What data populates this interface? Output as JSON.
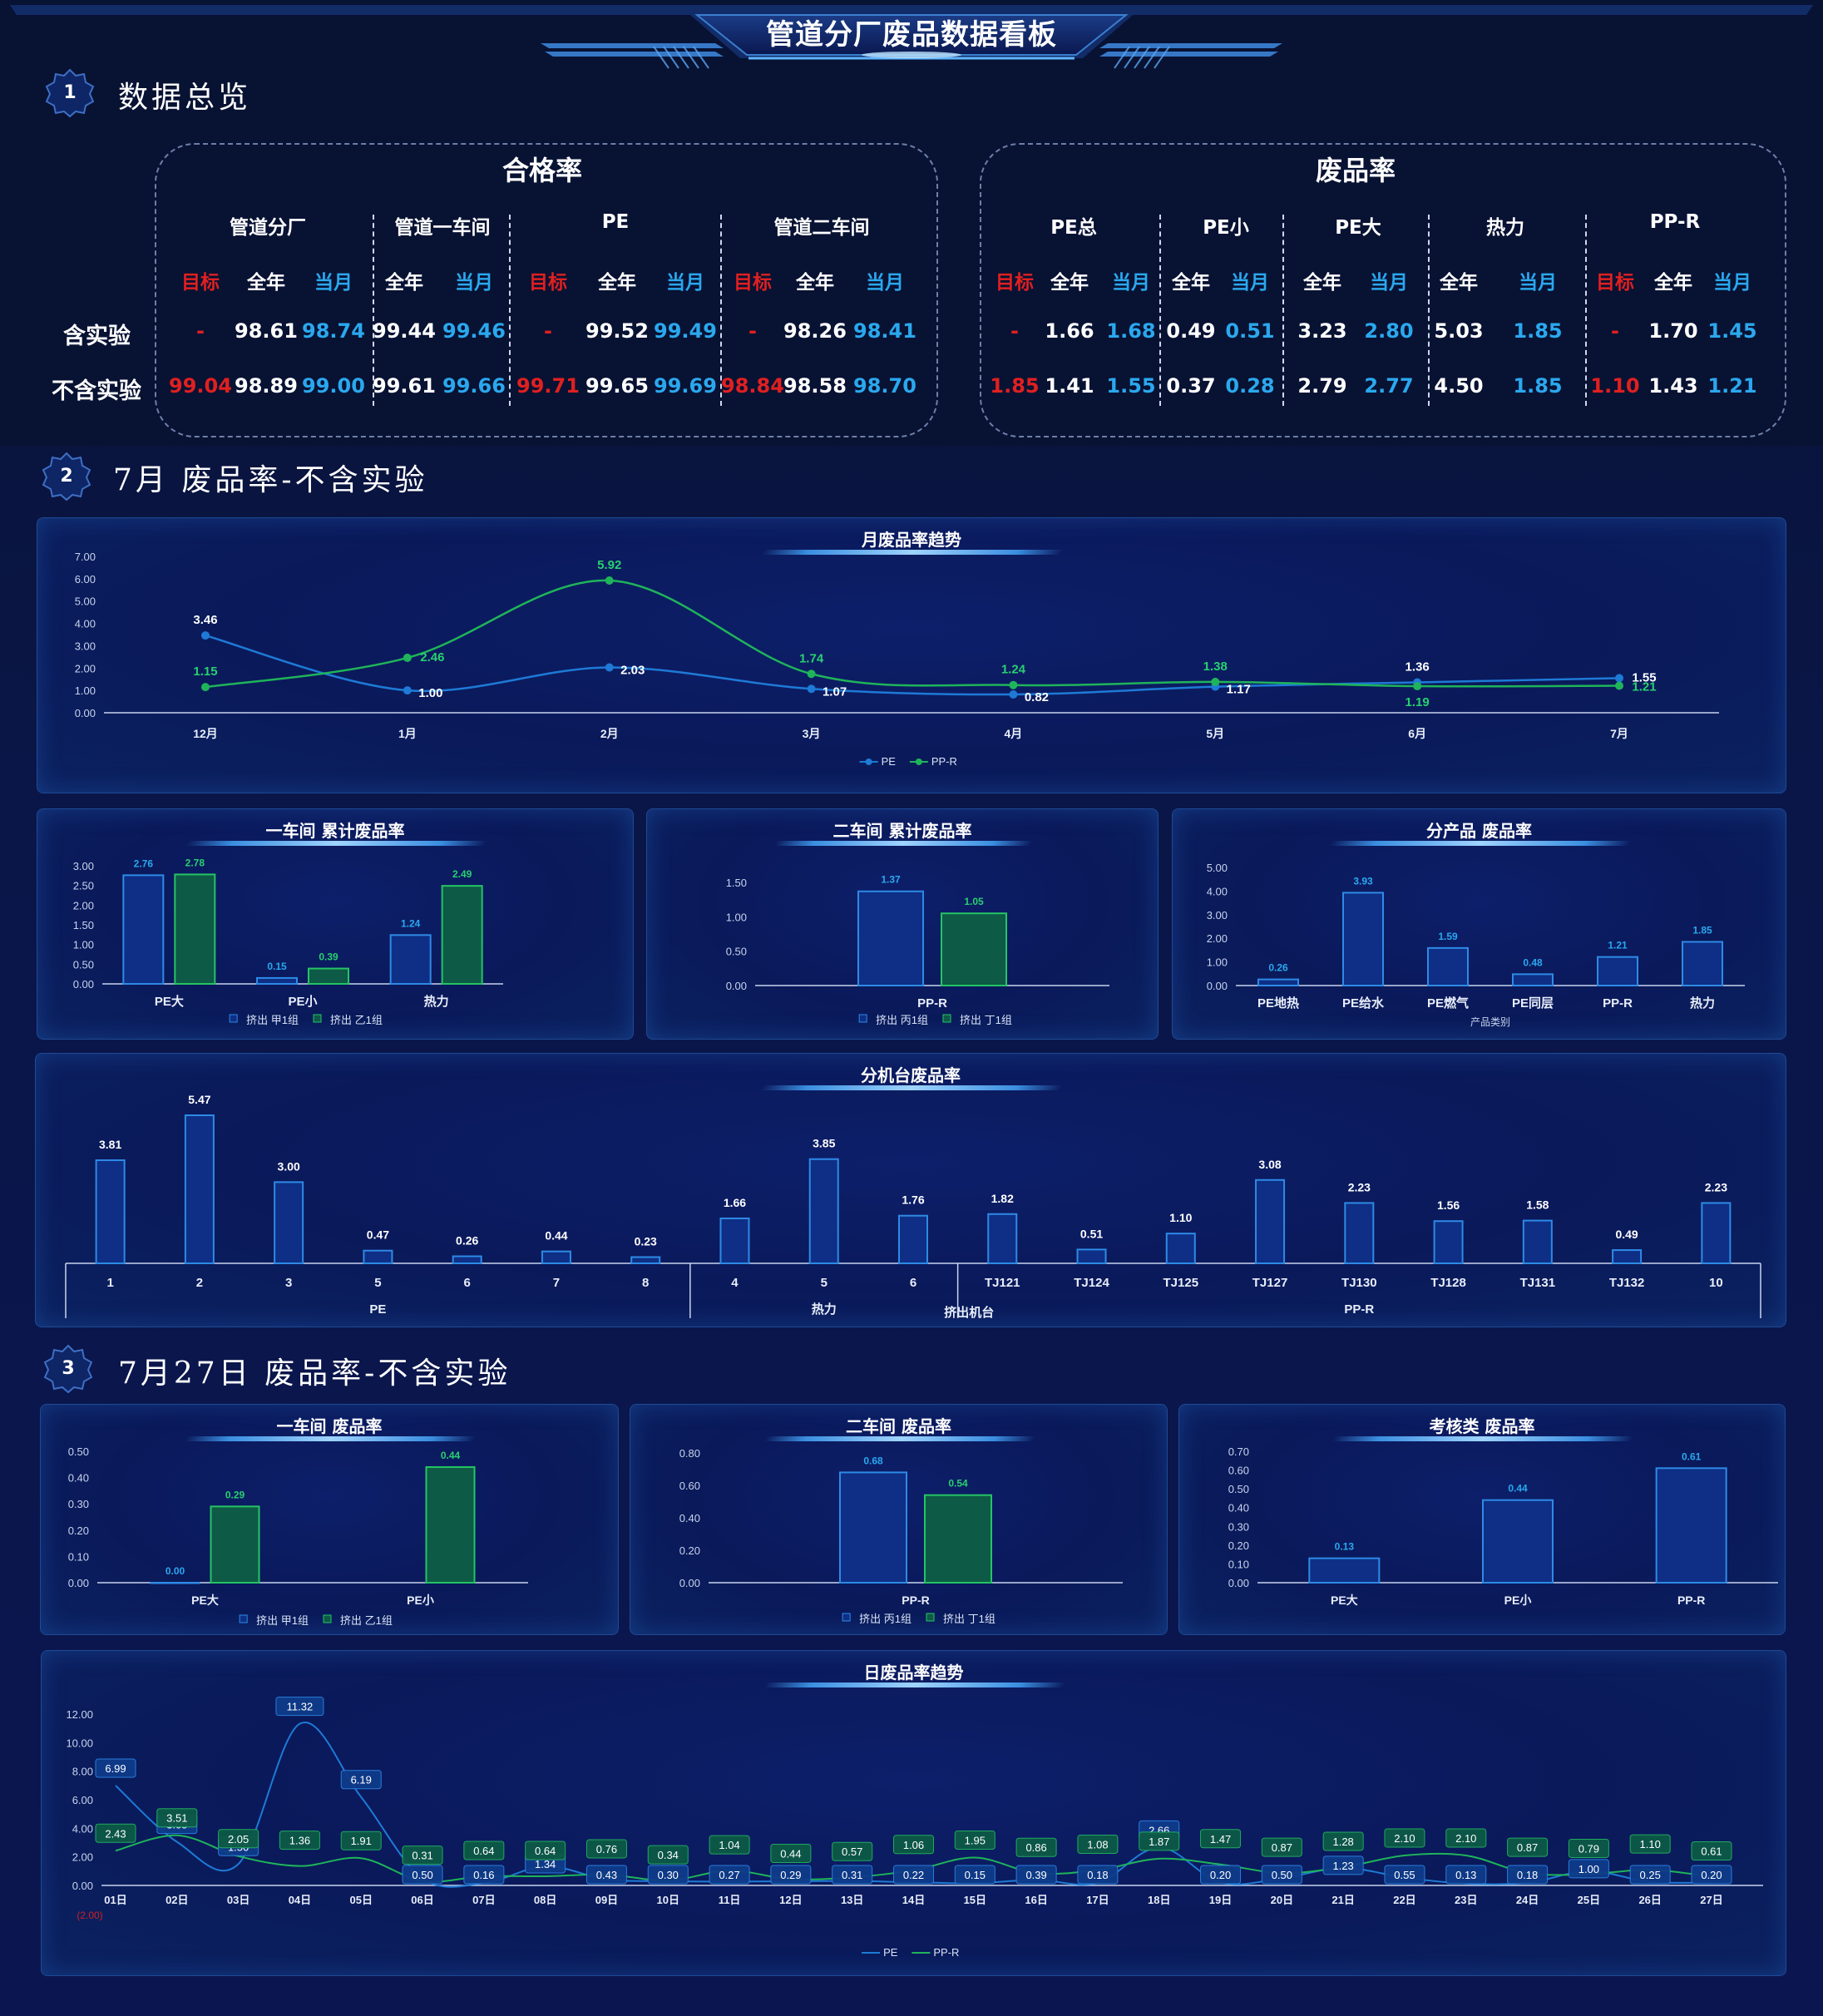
{
  "page_title": "管道分厂废品数据看板",
  "sections": [
    {
      "num": "1",
      "title": "数据总览"
    },
    {
      "num": "2",
      "title": "7月 废品率-不含实验"
    },
    {
      "num": "3",
      "title": "7月27日 废品率-不含实验"
    }
  ],
  "overview": {
    "row_labels": [
      "含实验",
      "不含实验"
    ],
    "sub_labels": {
      "target": "目标",
      "year": "全年",
      "month": "当月"
    },
    "pass_rate": {
      "title": "合格率",
      "groups": [
        {
          "name": "管道分厂",
          "cols": [
            "target",
            "year",
            "month"
          ],
          "rows": [
            [
              "-",
              "98.61",
              "98.74"
            ],
            [
              "99.04",
              "98.89",
              "99.00"
            ]
          ]
        },
        {
          "name": "管道一车间",
          "cols": [
            "year",
            "month"
          ],
          "rows": [
            [
              "99.44",
              "99.46"
            ],
            [
              "99.61",
              "99.66"
            ]
          ]
        },
        {
          "name": "PE",
          "cols": [
            "target",
            "year",
            "month"
          ],
          "rows": [
            [
              "-",
              "99.52",
              "99.49"
            ],
            [
              "99.71",
              "99.65",
              "99.69"
            ]
          ]
        },
        {
          "name": "管道二车间",
          "cols": [
            "target",
            "year",
            "month"
          ],
          "rows": [
            [
              "-",
              "98.26",
              "98.41"
            ],
            [
              "98.84",
              "98.58",
              "98.70"
            ]
          ]
        }
      ]
    },
    "scrap_rate": {
      "title": "废品率",
      "groups": [
        {
          "name": "PE总",
          "cols": [
            "target",
            "year",
            "month"
          ],
          "rows": [
            [
              "-",
              "1.66",
              "1.68"
            ],
            [
              "1.85",
              "1.41",
              "1.55"
            ]
          ]
        },
        {
          "name": "PE小",
          "cols": [
            "year",
            "month"
          ],
          "rows": [
            [
              "0.49",
              "0.51"
            ],
            [
              "0.37",
              "0.28"
            ]
          ]
        },
        {
          "name": "PE大",
          "cols": [
            "year",
            "month"
          ],
          "rows": [
            [
              "3.23",
              "2.80"
            ],
            [
              "2.79",
              "2.77"
            ]
          ]
        },
        {
          "name": "热力",
          "cols": [
            "year",
            "month"
          ],
          "rows": [
            [
              "5.03",
              "1.85"
            ],
            [
              "4.50",
              "1.85"
            ]
          ]
        },
        {
          "name": "PP-R",
          "cols": [
            "target",
            "year",
            "month"
          ],
          "rows": [
            [
              "-",
              "1.70",
              "1.45"
            ],
            [
              "1.10",
              "1.43",
              "1.21"
            ]
          ]
        }
      ]
    }
  },
  "chart_data": [
    {
      "id": "monthly-trend",
      "type": "line",
      "title": "月废品率趋势",
      "categories": [
        "12月",
        "1月",
        "2月",
        "3月",
        "4月",
        "5月",
        "6月",
        "7月"
      ],
      "y_ticks": [
        "0.00",
        "1.00",
        "2.00",
        "3.00",
        "4.00",
        "5.00",
        "6.00",
        "7.00"
      ],
      "ylim": [
        0,
        7
      ],
      "series": [
        {
          "name": "PE",
          "values": [
            3.46,
            1.0,
            2.03,
            1.07,
            0.82,
            1.17,
            1.36,
            1.55
          ],
          "labels": [
            "3.46",
            "1.00",
            "2.03",
            "1.07",
            "0.82",
            "1.17",
            "1.36",
            "1.55"
          ]
        },
        {
          "name": "PP-R",
          "values": [
            1.15,
            2.46,
            5.92,
            1.74,
            1.24,
            1.38,
            1.19,
            1.21
          ],
          "labels": [
            "1.15",
            "2.46",
            "5.92",
            "1.74",
            "1.24",
            "1.38",
            "1.19",
            "1.21"
          ]
        }
      ],
      "legend": "bottom-center"
    },
    {
      "id": "ws1-cumulative",
      "type": "bar",
      "title": "一车间 累计废品率",
      "categories": [
        "PE大",
        "PE小",
        "热力"
      ],
      "y_ticks": [
        "0.00",
        "0.50",
        "1.00",
        "1.50",
        "2.00",
        "2.50",
        "3.00"
      ],
      "ylim": [
        0,
        3
      ],
      "series": [
        {
          "name": "挤出 甲1组",
          "values": [
            2.76,
            0.15,
            1.24
          ],
          "labels": [
            "2.76",
            "0.15",
            "1.24"
          ]
        },
        {
          "name": "挤出 乙1组",
          "values": [
            2.78,
            0.39,
            2.49
          ],
          "labels": [
            "2.78",
            "0.39",
            "2.49"
          ]
        }
      ],
      "legend": "bottom-center"
    },
    {
      "id": "ws2-cumulative",
      "type": "bar",
      "title": "二车间 累计废品率",
      "categories": [
        "PP-R"
      ],
      "y_ticks": [
        "0.00",
        "0.50",
        "1.00",
        "1.50"
      ],
      "ylim": [
        0,
        1.5
      ],
      "series": [
        {
          "name": "挤出 丙1组",
          "values": [
            1.37
          ],
          "labels": [
            "1.37"
          ]
        },
        {
          "name": "挤出 丁1组",
          "values": [
            1.05
          ],
          "labels": [
            "1.05"
          ]
        }
      ],
      "legend": "bottom-center"
    },
    {
      "id": "product-scrap",
      "type": "bar",
      "title": "分产品 废品率",
      "categories": [
        "PE地热",
        "PE给水",
        "PE燃气",
        "PE同层",
        "PP-R",
        "热力"
      ],
      "xlabel": "产品类别",
      "y_ticks": [
        "0.00",
        "1.00",
        "2.00",
        "3.00",
        "4.00",
        "5.00"
      ],
      "ylim": [
        0,
        5
      ],
      "series": [
        {
          "values": [
            0.26,
            3.93,
            1.59,
            0.48,
            1.21,
            1.85
          ],
          "labels": [
            "0.26",
            "3.93",
            "1.59",
            "0.48",
            "1.21",
            "1.85"
          ]
        }
      ]
    },
    {
      "id": "machine-scrap",
      "type": "bar",
      "title": "分机台废品率",
      "categories": [
        "1",
        "2",
        "3",
        "5",
        "6",
        "7",
        "8",
        "4",
        "5",
        "6",
        "TJ121",
        "TJ124",
        "TJ125",
        "TJ127",
        "TJ130",
        "TJ128",
        "TJ131",
        "TJ132",
        "10"
      ],
      "groups": [
        {
          "name": "PE",
          "count": 7
        },
        {
          "name": "热力",
          "count": 3
        },
        {
          "name": "PP-R",
          "count": 9
        }
      ],
      "xlabel": "挤出机台",
      "series": [
        {
          "values": [
            3.81,
            5.47,
            3.0,
            0.47,
            0.26,
            0.44,
            0.23,
            1.66,
            3.85,
            1.76,
            1.82,
            0.51,
            1.1,
            3.08,
            2.23,
            1.56,
            1.58,
            0.49,
            2.23
          ],
          "labels": [
            "3.81",
            "5.47",
            "3.00",
            "0.47",
            "0.26",
            "0.44",
            "0.23",
            "1.66",
            "3.85",
            "1.76",
            "1.82",
            "0.51",
            "1.10",
            "3.08",
            "2.23",
            "1.56",
            "1.58",
            "0.49",
            "2.23"
          ]
        }
      ]
    },
    {
      "id": "ws1-daily",
      "type": "bar",
      "title": "一车间 废品率",
      "categories": [
        "PE大",
        "PE小"
      ],
      "y_ticks": [
        "0.00",
        "0.10",
        "0.20",
        "0.30",
        "0.40",
        "0.50"
      ],
      "ylim": [
        0,
        0.5
      ],
      "series": [
        {
          "name": "挤出 甲1组",
          "values": [
            0.0,
            null
          ],
          "labels": [
            "0.00",
            ""
          ]
        },
        {
          "name": "挤出 乙1组",
          "values": [
            0.29,
            0.44
          ],
          "labels": [
            "0.29",
            "0.44"
          ]
        }
      ],
      "legend": "bottom-center"
    },
    {
      "id": "ws2-daily",
      "type": "bar",
      "title": "二车间 废品率",
      "categories": [
        "PP-R"
      ],
      "y_ticks": [
        "0.00",
        "0.20",
        "0.40",
        "0.60",
        "0.80"
      ],
      "ylim": [
        0,
        0.8
      ],
      "series": [
        {
          "name": "挤出 丙1组",
          "values": [
            0.68
          ],
          "labels": [
            "0.68"
          ]
        },
        {
          "name": "挤出 丁1组",
          "values": [
            0.54
          ],
          "labels": [
            "0.54"
          ]
        }
      ],
      "legend": "bottom-center"
    },
    {
      "id": "assess-daily",
      "type": "bar",
      "title": "考核类 废品率",
      "categories": [
        "PE大",
        "PE小",
        "PP-R"
      ],
      "y_ticks": [
        "0.00",
        "0.10",
        "0.20",
        "0.30",
        "0.40",
        "0.50",
        "0.60",
        "0.70"
      ],
      "ylim": [
        0,
        0.7
      ],
      "series": [
        {
          "values": [
            0.13,
            0.44,
            0.61
          ],
          "labels": [
            "0.13",
            "0.44",
            "0.61"
          ]
        }
      ]
    },
    {
      "id": "daily-trend",
      "type": "line",
      "title": "日废品率趋势",
      "categories": [
        "01日",
        "02日",
        "03日",
        "04日",
        "05日",
        "06日",
        "07日",
        "08日",
        "09日",
        "10日",
        "11日",
        "12日",
        "13日",
        "14日",
        "15日",
        "16日",
        "17日",
        "18日",
        "19日",
        "20日",
        "21日",
        "22日",
        "23日",
        "24日",
        "25日",
        "26日",
        "27日"
      ],
      "y_ticks": [
        "0.00",
        "2.00",
        "4.00",
        "6.00",
        "8.00",
        "10.00",
        "12.00"
      ],
      "ylim": [
        0,
        12
      ],
      "below_axis_label": "(2.00)",
      "series": [
        {
          "name": "PE",
          "values": [
            6.99,
            3.05,
            1.5,
            11.32,
            6.19,
            0.5,
            0.16,
            1.34,
            0.43,
            0.3,
            0.27,
            0.29,
            0.31,
            0.22,
            0.15,
            0.39,
            0.18,
            2.66,
            0.2,
            0.5,
            1.23,
            0.55,
            0.13,
            0.18,
            1.0,
            0.25,
            0.2
          ],
          "labels": [
            "6.99",
            "3.05",
            "1.50",
            "11.32",
            "6.19",
            "0.50",
            "0.16",
            "1.34",
            "0.43",
            "0.30",
            "0.27",
            "0.29",
            "0.31",
            "0.22",
            "0.15",
            "0.39",
            "0.18",
            "2.66",
            "0.20",
            "0.50",
            "1.23",
            "0.55",
            "0.13",
            "0.18",
            "1.00",
            "0.25",
            "0.20"
          ]
        },
        {
          "name": "PP-R",
          "values": [
            2.43,
            3.51,
            2.05,
            1.36,
            1.91,
            0.31,
            0.64,
            0.64,
            0.76,
            0.34,
            1.04,
            0.44,
            0.57,
            1.06,
            1.95,
            0.86,
            1.08,
            1.87,
            1.47,
            0.87,
            1.28,
            2.1,
            2.1,
            0.87,
            0.79,
            1.1,
            0.61
          ],
          "labels": [
            "2.43",
            "3.51",
            "2.05",
            "1.36",
            "1.91",
            "0.31",
            "0.64",
            "0.64",
            "0.76",
            "0.34",
            "1.04",
            "0.44",
            "0.57",
            "1.06",
            "1.95",
            "0.86",
            "1.08",
            "1.87",
            "1.47",
            "0.87",
            "1.28",
            "2.10",
            "2.10",
            "0.87",
            "0.79",
            "1.10",
            "0.61"
          ]
        }
      ],
      "legend": "bottom-center"
    }
  ],
  "colors": {
    "target": "#e02020",
    "year": "#ffffff",
    "month": "#2aa8ee",
    "pe": "#1e7ad6",
    "ppr": "#1fb45a",
    "bar_blue": "#2a82e0",
    "bar_green": "#22c060"
  }
}
